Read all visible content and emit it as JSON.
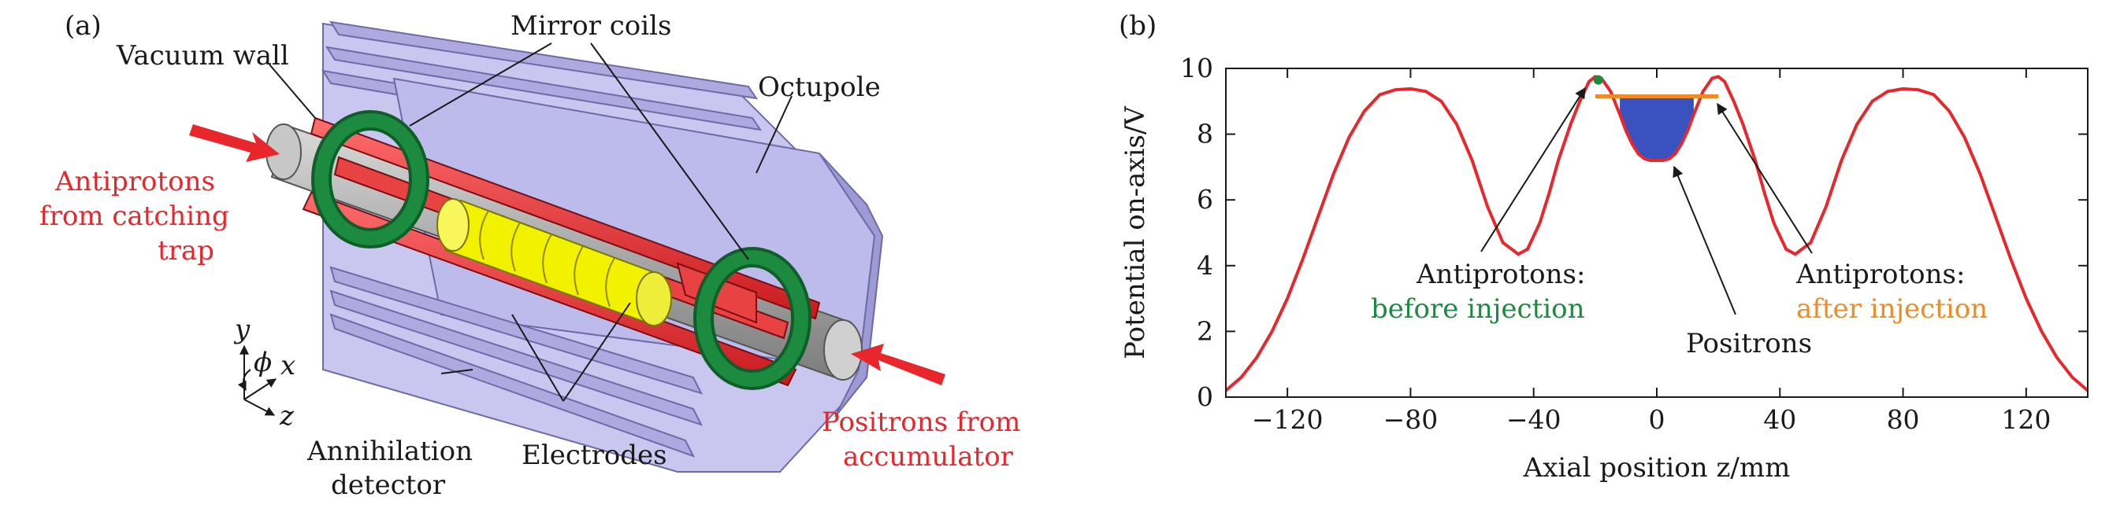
{
  "panel_a": {
    "tag": "(a)",
    "labels": {
      "vacuum_wall": "Vacuum wall",
      "mirror_coils": "Mirror coils",
      "octupole": "Octupole",
      "antiprotons_line1": "Antiprotons",
      "antiprotons_line2": "from catching",
      "antiprotons_line3": "trap",
      "annihilation_line1": "Annihilation",
      "annihilation_line2": "detector",
      "electrodes": "Electrodes",
      "positrons_line1": "Positrons from",
      "positrons_line2": "accumulator",
      "axis_y": "y",
      "axis_x": "x",
      "axis_z": "z",
      "axis_phi": "ϕ"
    },
    "colors": {
      "antiproton_arrow": "#e8262b",
      "positron_arrow": "#e8262b",
      "electrodes": "#e8262b",
      "coils": "#1c8a3f",
      "octupole": "#f2f200",
      "detector": "#b7b5e6",
      "vacuum_wall": "#b5b5b5"
    }
  },
  "panel_b": {
    "tag": "(b)",
    "annotations": {
      "before_line1": "Antiprotons:",
      "before_line2": "before injection",
      "after_line1": "Antiprotons:",
      "after_line2": "after injection",
      "positrons": "Positrons"
    }
  },
  "chart_data": {
    "type": "line",
    "title": "",
    "xlabel": "Axial position z/mm",
    "ylabel": "Potential on-axis/V",
    "xlim": [
      -140,
      140
    ],
    "ylim": [
      0,
      10
    ],
    "xticks": [
      -120,
      -80,
      -40,
      0,
      40,
      80,
      120
    ],
    "xtick_labels": [
      "−120",
      "−80",
      "−40",
      "0",
      "40",
      "80",
      "120"
    ],
    "yticks": [
      0,
      2,
      4,
      6,
      8,
      10
    ],
    "ytick_labels": [
      "0",
      "2",
      "4",
      "6",
      "8",
      "10"
    ],
    "grid": false,
    "series": [
      {
        "color": "#e8262b",
        "x": [
          -140,
          -135,
          -130,
          -125,
          -120,
          -115,
          -110,
          -105,
          -100,
          -95,
          -90,
          -85,
          -80,
          -75,
          -70,
          -65,
          -60,
          -55,
          -50,
          -45,
          -42,
          -38,
          -35,
          -32,
          -28,
          -25,
          -22,
          -20,
          -18,
          -15,
          -12,
          -10,
          -8,
          -6,
          -4,
          -2,
          0,
          2,
          4,
          6,
          8,
          10,
          12,
          15,
          18,
          20,
          22,
          25,
          28,
          32,
          35,
          38,
          42,
          45,
          50,
          55,
          60,
          65,
          70,
          75,
          80,
          85,
          90,
          95,
          100,
          105,
          110,
          115,
          120,
          125,
          130,
          135,
          140
        ],
        "y": [
          0.2,
          0.6,
          1.2,
          2.0,
          3.0,
          4.2,
          5.5,
          6.8,
          7.9,
          8.7,
          9.2,
          9.35,
          9.38,
          9.3,
          9.0,
          8.3,
          7.2,
          5.8,
          4.7,
          4.35,
          4.5,
          5.3,
          6.2,
          7.2,
          8.3,
          9.0,
          9.6,
          9.75,
          9.7,
          9.3,
          8.6,
          8.1,
          7.7,
          7.4,
          7.25,
          7.2,
          7.2,
          7.2,
          7.25,
          7.4,
          7.7,
          8.1,
          8.6,
          9.3,
          9.7,
          9.75,
          9.6,
          9.0,
          8.3,
          7.2,
          6.2,
          5.3,
          4.5,
          4.35,
          4.7,
          5.8,
          7.2,
          8.3,
          9.0,
          9.3,
          9.38,
          9.35,
          9.2,
          8.7,
          7.9,
          6.8,
          5.5,
          4.2,
          3.0,
          2.0,
          1.2,
          0.6,
          0.2
        ]
      }
    ],
    "antiprotons_after_level": 9.15,
    "antiprotons_after_x": [
      -20,
      20
    ],
    "antiprotons_before_point": [
      -19,
      9.65
    ],
    "positrons_fill": {
      "x": [
        -12,
        12
      ],
      "level": 9.15,
      "color": "#3a52c0"
    }
  }
}
